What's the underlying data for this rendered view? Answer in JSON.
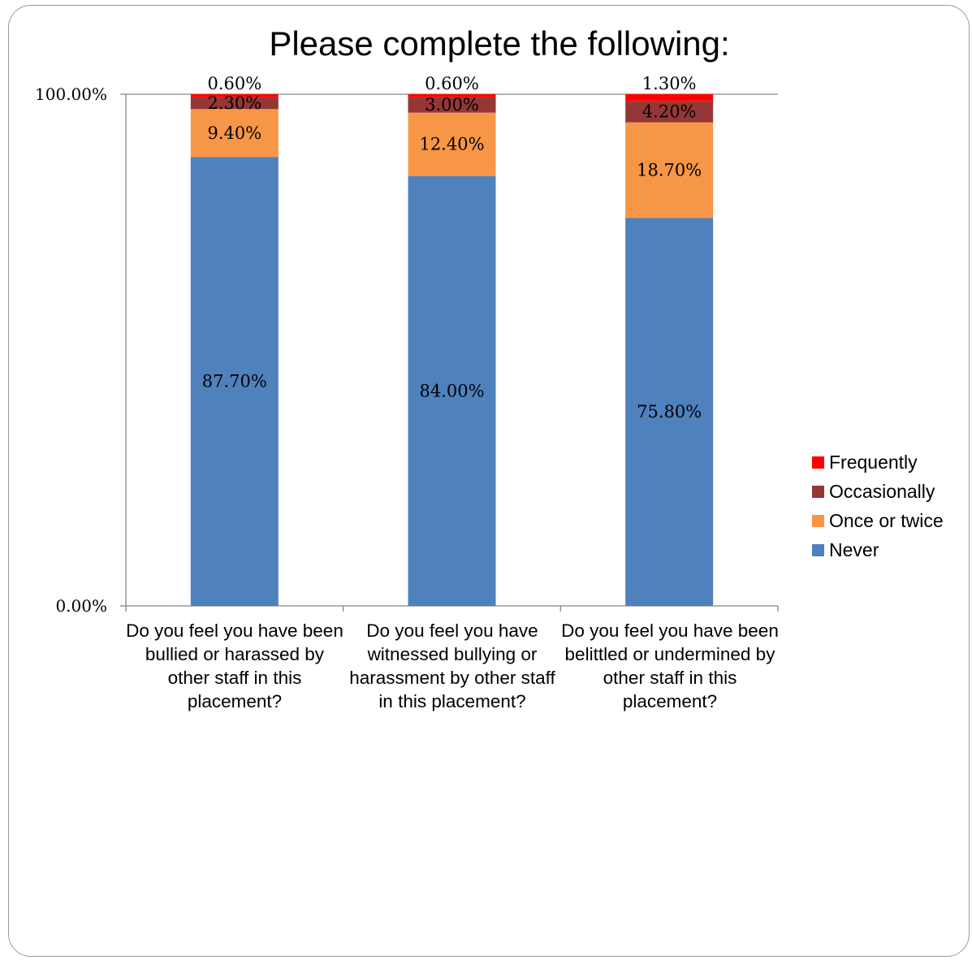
{
  "chart_data": {
    "type": "bar",
    "stacked": true,
    "title": "Please complete the following:",
    "xlabel": "",
    "ylabel": "",
    "ylim": [
      0,
      100
    ],
    "y_ticks": [
      "0.00%",
      "100.00%"
    ],
    "grid": false,
    "legend_position": "right",
    "categories": [
      "Do you feel you have been bullied or harassed by other staff in this placement?",
      "Do you feel you have witnessed bullying or harassment by other staff in this placement?",
      "Do you feel you have been belittled or undermined by other staff in this placement?"
    ],
    "series": [
      {
        "name": "Never",
        "color": "#4f81bd",
        "values": [
          87.7,
          84.0,
          75.8
        ],
        "labels": [
          "87.70%",
          "84.00%",
          "75.80%"
        ]
      },
      {
        "name": "Once or twice",
        "color": "#f79646",
        "values": [
          9.4,
          12.4,
          18.7
        ],
        "labels": [
          "9.40%",
          "12.40%",
          "18.70%"
        ]
      },
      {
        "name": "Occasionally",
        "color": "#953735",
        "values": [
          2.3,
          3.0,
          4.2
        ],
        "labels": [
          "2.30%",
          "3.00%",
          "4.20%"
        ]
      },
      {
        "name": "Frequently",
        "color": "#ff0000",
        "values": [
          0.6,
          0.6,
          1.3
        ],
        "labels": [
          "0.60%",
          "0.60%",
          "1.30%"
        ]
      }
    ],
    "legend_order": [
      "Frequently",
      "Occasionally",
      "Once or twice",
      "Never"
    ]
  }
}
